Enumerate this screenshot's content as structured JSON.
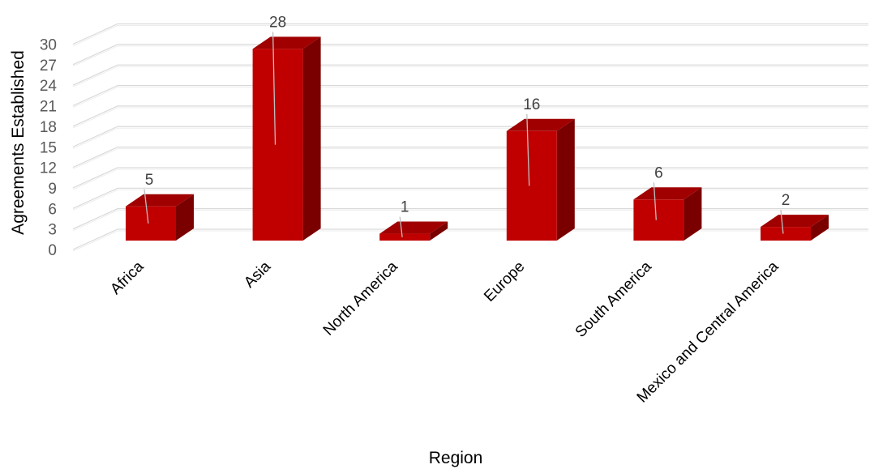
{
  "chart_data": {
    "type": "bar",
    "style": "3d-clustered-column",
    "categories": [
      "Africa",
      "Asia",
      "North America",
      "Europe",
      "South America",
      "Mexico and Central America"
    ],
    "values": [
      5,
      28,
      1,
      16,
      6,
      2
    ],
    "data_labels": [
      "5",
      "28",
      "1",
      "16",
      "6",
      "2"
    ],
    "title": "",
    "xlabel": "Region",
    "ylabel": "Agreements Established",
    "ylim": [
      0,
      30
    ],
    "yticks": [
      "0",
      "3",
      "6",
      "9",
      "12",
      "15",
      "18",
      "21",
      "24",
      "27",
      "30"
    ],
    "grid": true,
    "legend": "none",
    "colors": {
      "bar_front": "#C00000",
      "bar_top": "#A00000",
      "bar_side": "#7A0000",
      "grid": "#D9D9D9"
    }
  }
}
